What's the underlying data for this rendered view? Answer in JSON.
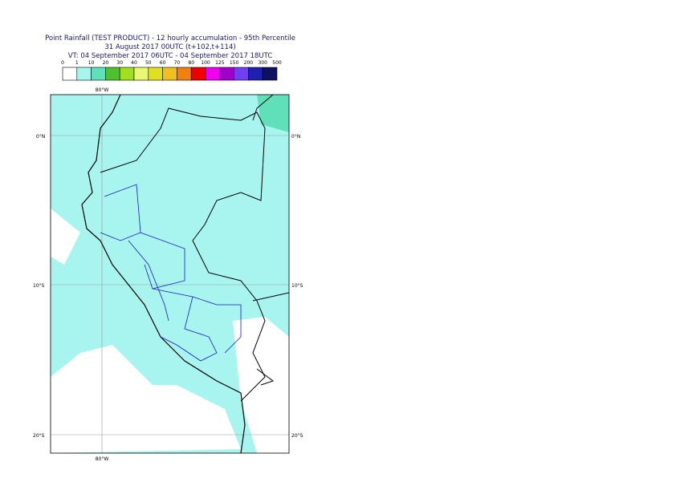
{
  "header": {
    "lines": [
      "Point Rainfall (TEST PRODUCT) - 12 hourly accumulation - 95th Percentile",
      "31 August 2017 00UTC (t+102,t+114)",
      "VT: 04 September 2017 06UTC - 04 September 2017 18UTC"
    ]
  },
  "legend": {
    "labels": [
      "0",
      "1",
      "10",
      "20",
      "30",
      "40",
      "50",
      "60",
      "70",
      "80",
      "100",
      "125",
      "150",
      "200",
      "300",
      "500"
    ],
    "colors": [
      "#ffffff",
      "#a8f4ee",
      "#60e0b8",
      "#50c030",
      "#a0e020",
      "#e8f870",
      "#e0e020",
      "#f0c020",
      "#f08010",
      "#f00000",
      "#f000f0",
      "#a000c8",
      "#7040f0",
      "#2020b0",
      "#101060"
    ]
  },
  "map": {
    "lat_labels": [
      "0°N",
      "10°S",
      "20°S"
    ],
    "lon_label": "80°W"
  }
}
